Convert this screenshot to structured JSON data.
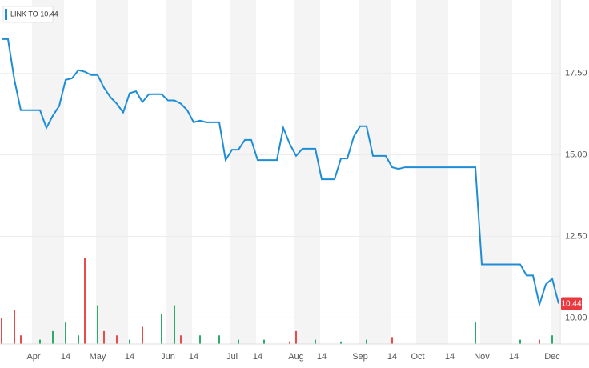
{
  "chart_data": {
    "type": "line",
    "legend": "top-left",
    "categories": [
      null,
      null,
      null,
      null,
      null,
      "Apr",
      null,
      null,
      null,
      null,
      "14",
      null,
      null,
      null,
      null,
      "May",
      null,
      null,
      null,
      null,
      "14",
      null,
      null,
      null,
      null,
      null,
      "Jun",
      null,
      null,
      null,
      "14",
      null,
      null,
      null,
      null,
      null,
      "Jul",
      null,
      null,
      null,
      "14",
      null,
      null,
      null,
      null,
      null,
      "Aug",
      null,
      null,
      null,
      "14",
      null,
      null,
      null,
      null,
      null,
      "Sep",
      null,
      null,
      null,
      null,
      "14",
      null,
      null,
      null,
      "Oct",
      null,
      null,
      null,
      null,
      "14",
      null,
      null,
      null,
      null,
      "Nov",
      null,
      null,
      null,
      null,
      "14",
      null,
      null,
      null,
      null,
      null,
      "Dec",
      null
    ],
    "series": [
      {
        "name": "LINK TO",
        "color": "#1f8dd6",
        "values": [
          18.55,
          18.55,
          17.3,
          16.37,
          16.37,
          16.37,
          16.37,
          15.83,
          16.2,
          16.5,
          17.3,
          17.35,
          17.6,
          17.55,
          17.45,
          17.45,
          17.06,
          16.77,
          16.57,
          16.3,
          16.89,
          16.95,
          16.62,
          16.86,
          16.86,
          16.86,
          16.67,
          16.67,
          16.57,
          16.37,
          16.0,
          16.05,
          16.0,
          16.0,
          16.0,
          14.84,
          15.16,
          15.16,
          15.46,
          15.46,
          14.84,
          14.84,
          14.84,
          14.84,
          15.83,
          15.34,
          14.97,
          15.19,
          15.19,
          15.19,
          14.25,
          14.25,
          14.25,
          14.89,
          14.89,
          15.56,
          15.88,
          15.88,
          14.97,
          14.97,
          14.97,
          14.62,
          14.57,
          14.62,
          14.62,
          14.62,
          14.62,
          14.62,
          14.62,
          14.62,
          14.62,
          14.62,
          14.62,
          14.62,
          14.62,
          11.64,
          11.64,
          11.64,
          11.64,
          11.64,
          11.64,
          11.64,
          11.3,
          11.3,
          10.41,
          11.03,
          11.2,
          10.44
        ]
      }
    ],
    "volume": {
      "axis": "y2",
      "up_color": "#2bab6b",
      "down_color": "#e84b4b",
      "values": [
        30,
        null,
        40,
        10,
        null,
        null,
        5,
        null,
        15,
        null,
        25,
        null,
        10,
        100,
        null,
        45,
        15,
        null,
        10,
        null,
        5,
        null,
        20,
        null,
        null,
        35,
        null,
        45,
        10,
        null,
        null,
        10,
        null,
        null,
        10,
        null,
        null,
        5,
        null,
        null,
        null,
        5,
        null,
        null,
        null,
        3,
        15,
        null,
        null,
        5,
        null,
        null,
        null,
        3,
        null,
        null,
        null,
        5,
        null,
        null,
        null,
        8,
        null,
        null,
        null,
        null,
        null,
        null,
        null,
        null,
        null,
        null,
        null,
        null,
        25,
        null,
        null,
        null,
        null,
        null,
        null,
        5,
        null,
        null,
        5,
        null,
        10,
        null
      ]
    },
    "ylim": [
      9.2,
      19.75
    ],
    "yticks": [
      {
        "value": 10,
        "label": "10.00"
      },
      {
        "value": 12.5,
        "label": "12.50"
      },
      {
        "value": 15,
        "label": "15.00"
      },
      {
        "value": 17.5,
        "label": "17.50"
      }
    ],
    "y2lim": [
      0,
      400
    ],
    "grid": true
  }
}
